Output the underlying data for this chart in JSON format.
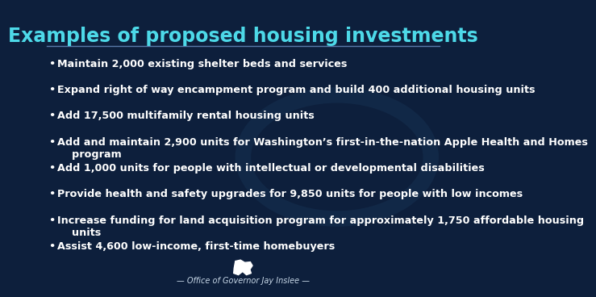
{
  "title": "Examples of proposed housing investments",
  "title_color": "#4dd9e8",
  "background_color": "#0d1f3c",
  "text_color": "#ffffff",
  "bullet_color": "#ffffff",
  "line_color": "#5a7aaa",
  "footer_line_color": "#4a90a4",
  "footer_text": "— Office of Governor Jay Inslee —",
  "footer_text_color": "#c8d8e8",
  "bullet_points": [
    "Maintain 2,000 existing shelter beds and services",
    "Expand right of way encampment program and build 400 additional housing units",
    "Add 17,500 multifamily rental housing units",
    "Add and maintain 2,900 units for Washington’s first-in-the-nation Apple Health and Homes\n    program",
    "Add 1,000 units for people with intellectual or developmental disabilities",
    "Provide health and safety upgrades for 9,850 units for people with low incomes",
    "Increase funding for land acquisition program for approximately 1,750 affordable housing\n    units",
    "Assist 4,600 low-income, first-time homebuyers"
  ],
  "title_fontsize": 17,
  "bullet_fontsize": 9.2,
  "footer_fontsize": 7.0
}
